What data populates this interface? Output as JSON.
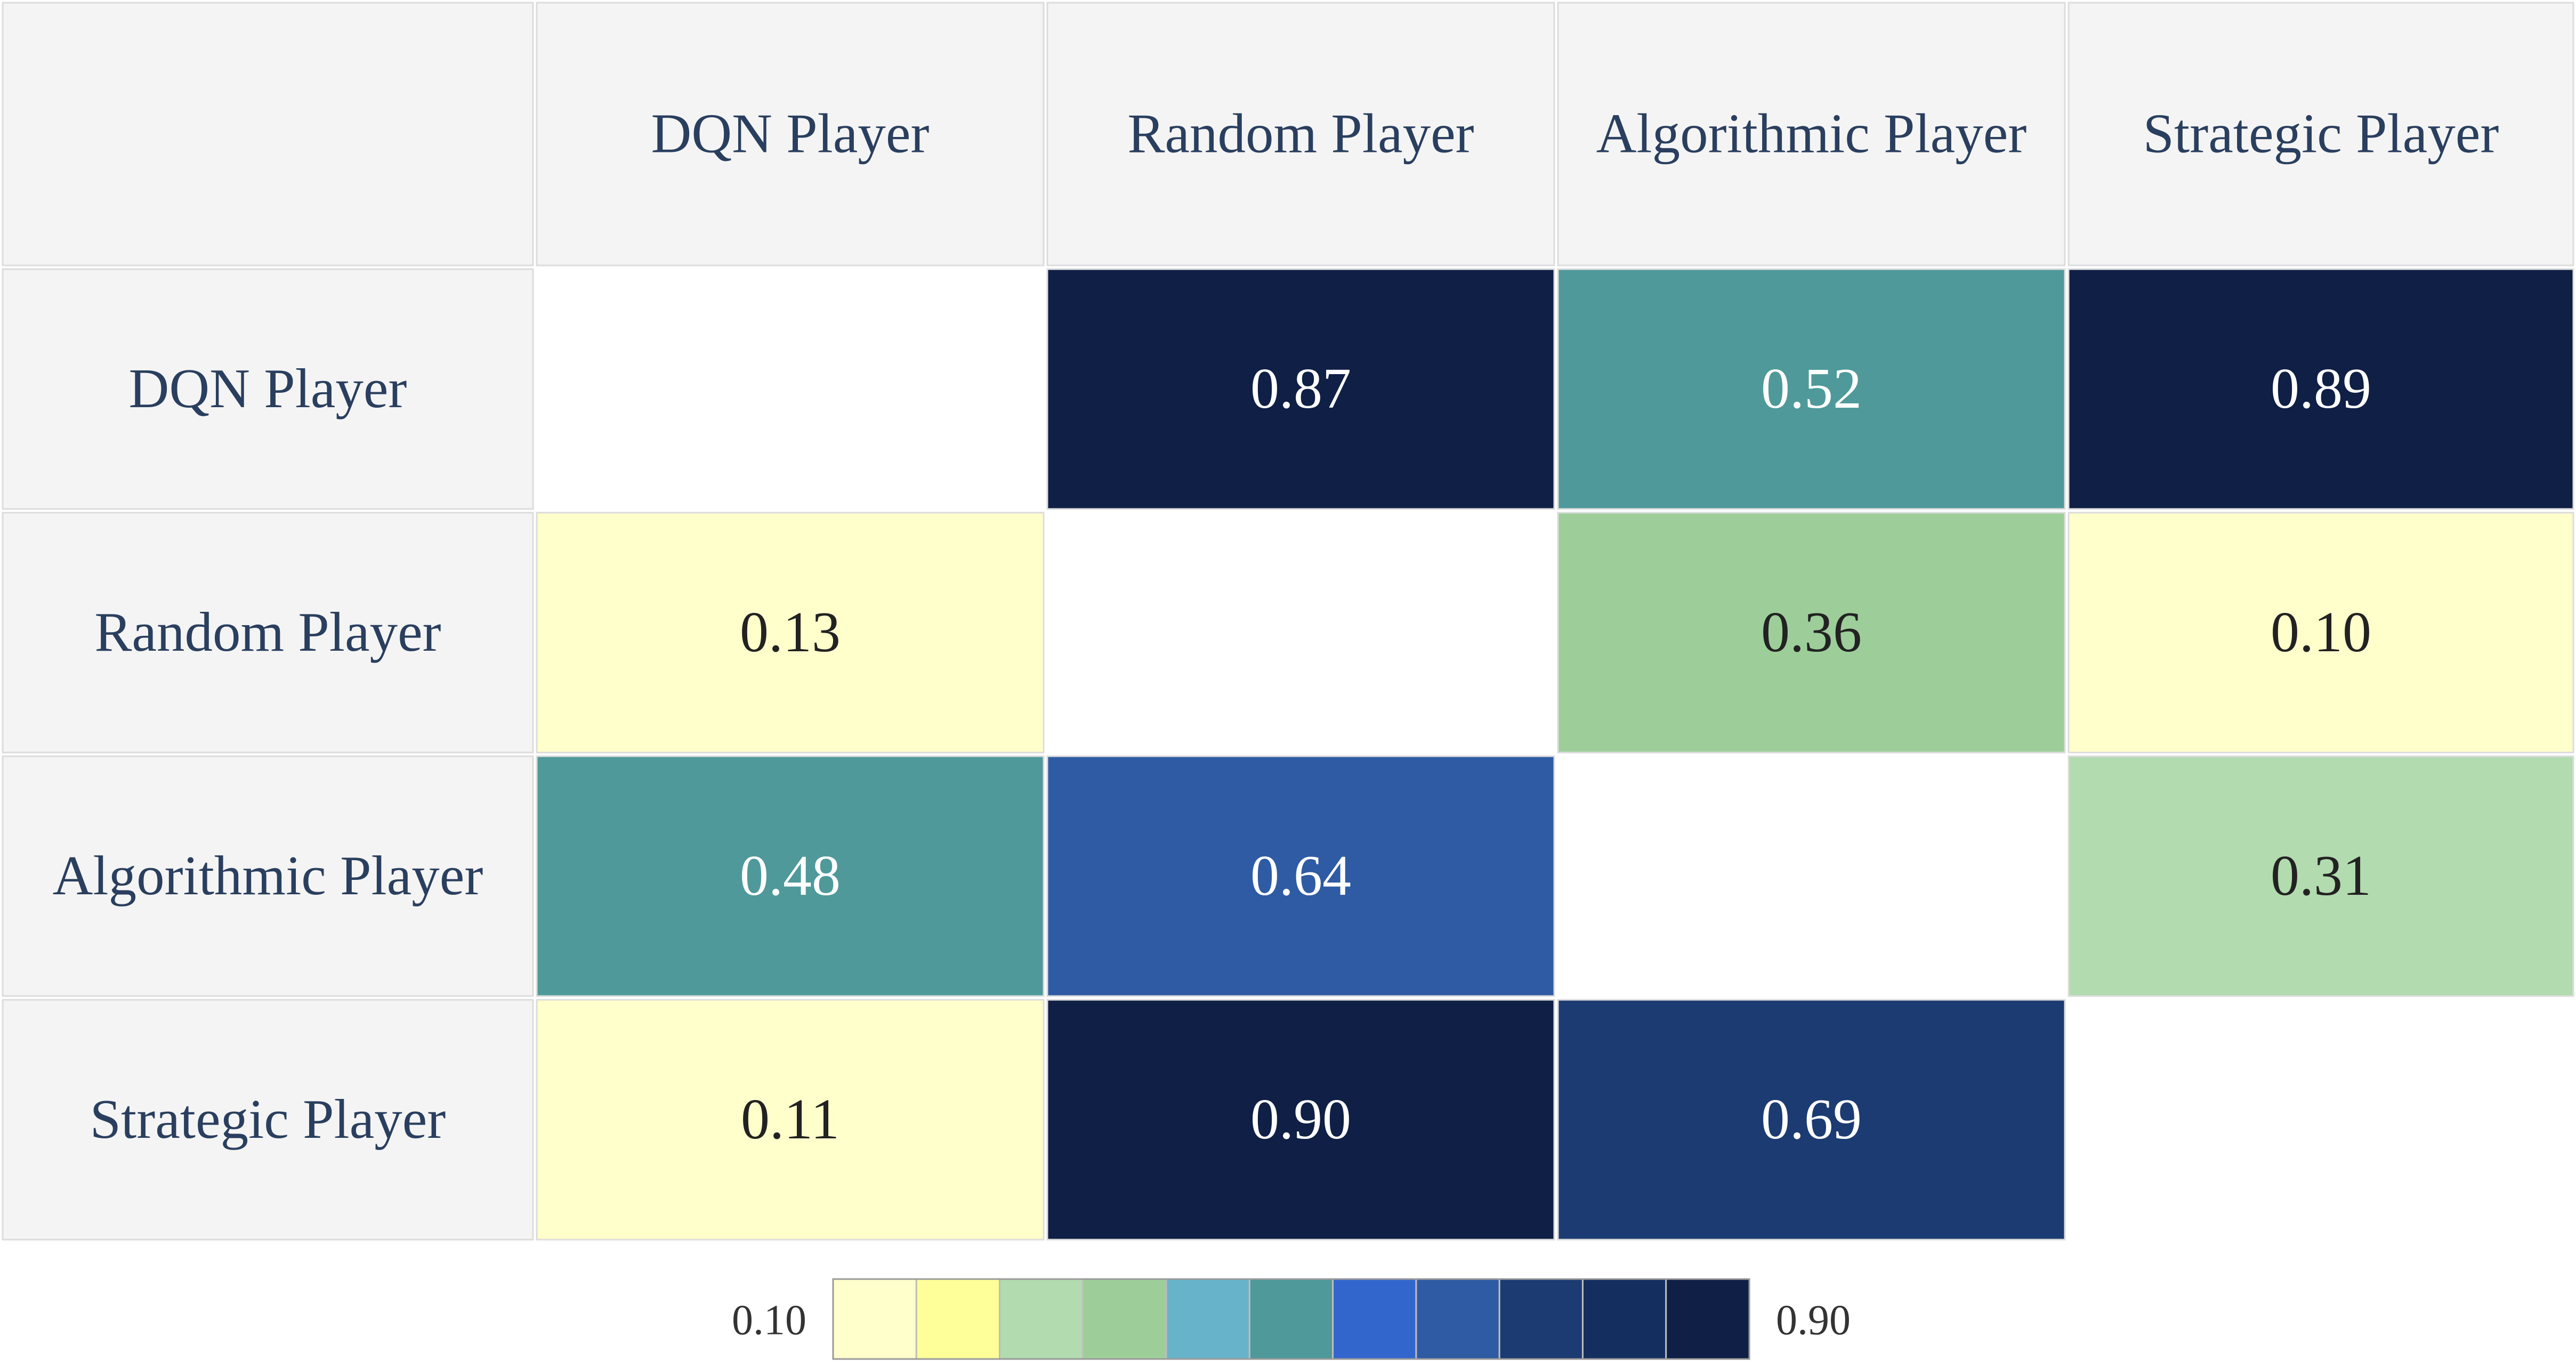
{
  "chart_data": {
    "type": "heatmap",
    "title": "",
    "xlabel": "",
    "ylabel": "",
    "columns": [
      "DQN Player",
      "Random Player",
      "Algorithmic Player",
      "Strategic Player"
    ],
    "rows": [
      "DQN Player",
      "Random Player",
      "Algorithmic Player",
      "Strategic Player"
    ],
    "values": [
      [
        null,
        0.87,
        0.52,
        0.89
      ],
      [
        0.13,
        null,
        0.36,
        0.1
      ],
      [
        0.48,
        0.64,
        null,
        0.31
      ],
      [
        0.11,
        0.9,
        0.69,
        null
      ]
    ],
    "value_labels": [
      [
        "",
        "0.87",
        "0.52",
        "0.89"
      ],
      [
        "0.13",
        "",
        "0.36",
        "0.10"
      ],
      [
        "0.48",
        "0.64",
        "",
        "0.31"
      ],
      [
        "0.11",
        "0.90",
        "0.69",
        ""
      ]
    ],
    "color_scale": {
      "min_label": "0.10",
      "max_label": "0.90",
      "min": 0.1,
      "max": 0.9,
      "colors": [
        "#ffffcc",
        "#ffff99",
        "#b2dbb0",
        "#9dce9a",
        "#67b3c9",
        "#4f999a",
        "#3366cc",
        "#2e5ba3",
        "#1b3b72",
        "#142f5f",
        "#0f1f45"
      ]
    },
    "colors": {
      "header_bg": "#f4f4f4",
      "header_border": "#dcdcdc",
      "header_text": "#2a3f5f",
      "text_dark": "#222222",
      "text_light": "#ffffff"
    }
  }
}
